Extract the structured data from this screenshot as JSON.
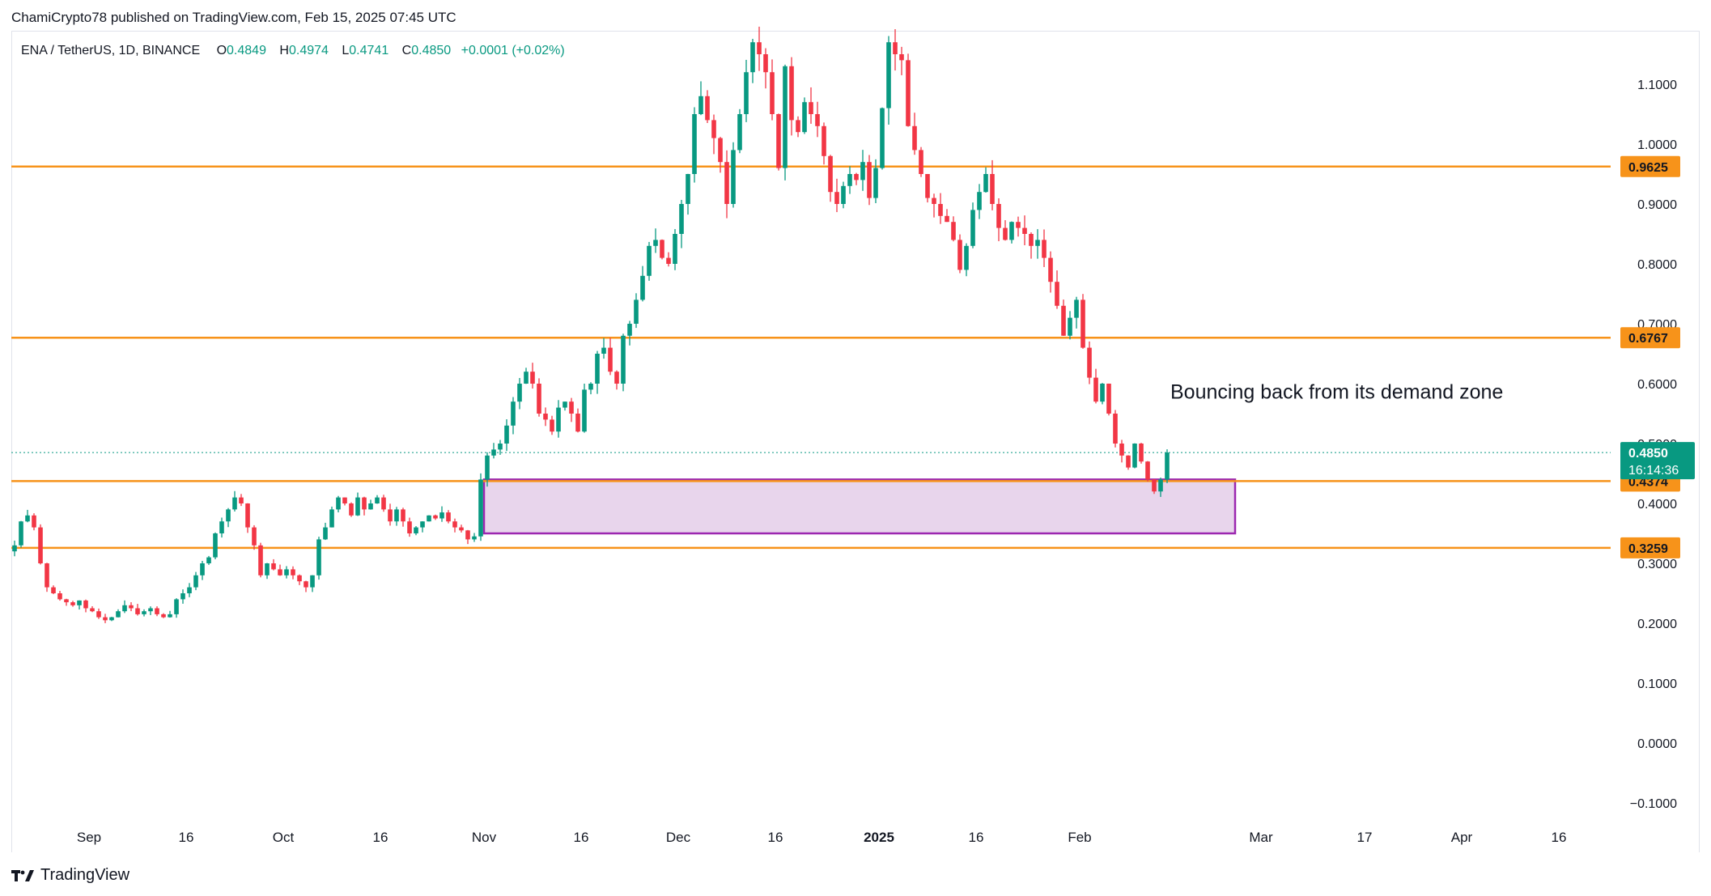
{
  "header": {
    "published_by": "ChamiCrypto78 published on TradingView.com, Feb 15, 2025 07:45 UTC"
  },
  "legend": {
    "symbol": "ENA / TetherUS, 1D, BINANCE",
    "open_label": "O",
    "open": "0.4849",
    "high_label": "H",
    "high": "0.4974",
    "low_label": "L",
    "low": "0.4741",
    "close_label": "C",
    "close": "0.4850",
    "change": "+0.0001 (+0.02%)"
  },
  "footer": {
    "brand": "TradingView"
  },
  "colors": {
    "up": "#089981",
    "down": "#f23645",
    "level": "#f7931a",
    "zone_fill": "#e8d5ec",
    "zone_stroke": "#9c27b0",
    "last_price": "#089981"
  },
  "chart_data": {
    "type": "candlestick",
    "y_axis": {
      "min": -0.12,
      "max": 1.18,
      "ticks": [
        1.1,
        1.0,
        0.9,
        0.8,
        0.7,
        0.6,
        0.5,
        0.4,
        0.3,
        0.2,
        0.1,
        0.0,
        -0.1
      ],
      "tick_labels": [
        "1.1000",
        "1.0000",
        "0.9000",
        "0.8000",
        "0.7000",
        "0.6000",
        "0.5000",
        "0.4000",
        "0.3000",
        "0.2000",
        "0.1000",
        "0.0000",
        "−0.1000"
      ]
    },
    "x_axis": {
      "start_date": "2024-08-20",
      "end_date": "2025-04-24",
      "ticks": [
        {
          "date": "2024-09-01",
          "label": "Sep",
          "bold": false
        },
        {
          "date": "2024-09-16",
          "label": "16",
          "bold": false
        },
        {
          "date": "2024-10-01",
          "label": "Oct",
          "bold": false
        },
        {
          "date": "2024-10-16",
          "label": "16",
          "bold": false
        },
        {
          "date": "2024-11-01",
          "label": "Nov",
          "bold": false
        },
        {
          "date": "2024-11-16",
          "label": "16",
          "bold": false
        },
        {
          "date": "2024-12-01",
          "label": "Dec",
          "bold": false
        },
        {
          "date": "2024-12-16",
          "label": "16",
          "bold": false
        },
        {
          "date": "2025-01-01",
          "label": "2025",
          "bold": true
        },
        {
          "date": "2025-01-16",
          "label": "16",
          "bold": false
        },
        {
          "date": "2025-02-01",
          "label": "Feb",
          "bold": false
        },
        {
          "date": "2025-03-01",
          "label": "Mar",
          "bold": false
        },
        {
          "date": "2025-03-17",
          "label": "17",
          "bold": false
        },
        {
          "date": "2025-04-01",
          "label": "Apr",
          "bold": false
        },
        {
          "date": "2025-04-16",
          "label": "16",
          "bold": false
        }
      ]
    },
    "levels": [
      {
        "value": 0.9625,
        "label": "0.9625"
      },
      {
        "value": 0.6767,
        "label": "0.6767"
      },
      {
        "value": 0.4374,
        "label": "0.4374"
      },
      {
        "value": 0.3259,
        "label": "0.3259"
      }
    ],
    "last_price": {
      "value": 0.485,
      "label": "0.4850",
      "countdown": "16:14:36"
    },
    "demand_zone": {
      "date_start": "2024-11-01",
      "date_end": "2025-02-25",
      "top": 0.44,
      "bottom": 0.35
    },
    "annotation": {
      "text": "Bouncing back from its demand zone",
      "date": "2025-02-15",
      "value": 0.575
    },
    "closes": [
      0.33,
      0.37,
      0.38,
      0.36,
      0.3,
      0.26,
      0.25,
      0.24,
      0.235,
      0.23,
      0.238,
      0.225,
      0.22,
      0.21,
      0.205,
      0.21,
      0.22,
      0.23,
      0.225,
      0.215,
      0.22,
      0.225,
      0.215,
      0.21,
      0.215,
      0.24,
      0.25,
      0.26,
      0.28,
      0.3,
      0.31,
      0.35,
      0.37,
      0.39,
      0.41,
      0.4,
      0.36,
      0.33,
      0.28,
      0.3,
      0.29,
      0.28,
      0.29,
      0.28,
      0.27,
      0.26,
      0.28,
      0.34,
      0.36,
      0.39,
      0.41,
      0.4,
      0.38,
      0.41,
      0.39,
      0.4,
      0.41,
      0.39,
      0.37,
      0.39,
      0.37,
      0.35,
      0.36,
      0.37,
      0.38,
      0.375,
      0.385,
      0.37,
      0.36,
      0.355,
      0.34,
      0.345,
      0.44,
      0.48,
      0.49,
      0.5,
      0.53,
      0.57,
      0.6,
      0.62,
      0.6,
      0.55,
      0.54,
      0.52,
      0.56,
      0.57,
      0.55,
      0.52,
      0.59,
      0.6,
      0.65,
      0.66,
      0.62,
      0.6,
      0.68,
      0.7,
      0.74,
      0.78,
      0.83,
      0.84,
      0.81,
      0.8,
      0.85,
      0.9,
      0.95,
      1.05,
      1.08,
      1.04,
      1.01,
      0.97,
      0.9,
      0.99,
      1.05,
      1.12,
      1.17,
      1.15,
      1.12,
      1.05,
      0.96,
      1.13,
      1.04,
      1.02,
      1.07,
      1.05,
      1.03,
      0.98,
      0.92,
      0.9,
      0.93,
      0.95,
      0.94,
      0.97,
      0.91,
      0.96,
      1.06,
      1.17,
      1.15,
      1.14,
      1.03,
      0.99,
      0.95,
      0.91,
      0.9,
      0.88,
      0.87,
      0.84,
      0.79,
      0.83,
      0.89,
      0.92,
      0.95,
      0.9,
      0.86,
      0.84,
      0.87,
      0.86,
      0.85,
      0.83,
      0.84,
      0.81,
      0.77,
      0.73,
      0.68,
      0.71,
      0.74,
      0.66,
      0.61,
      0.57,
      0.6,
      0.55,
      0.5,
      0.48,
      0.46,
      0.5,
      0.47,
      0.44,
      0.42,
      0.44,
      0.485
    ],
    "volatility": 0.045
  }
}
